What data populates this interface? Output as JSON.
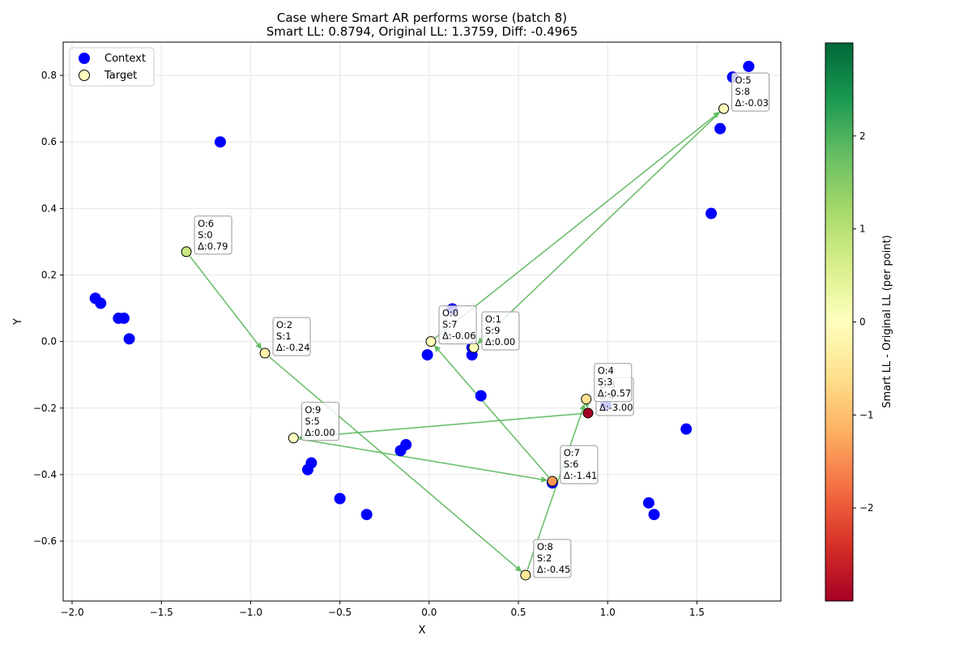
{
  "chart_data": {
    "type": "scatter",
    "title": "Case where Smart AR performs worse (batch 8)",
    "subtitle": "Smart LL: 0.8794, Original LL: 1.3759, Diff: -0.4965",
    "xlabel": "X",
    "ylabel": "Y",
    "xlim": [
      -2.05,
      1.97
    ],
    "ylim": [
      -0.78,
      0.9
    ],
    "x_ticks": [
      "−2.0",
      "−1.5",
      "−1.0",
      "−0.5",
      "0.0",
      "0.5",
      "1.0",
      "1.5"
    ],
    "x_tick_values": [
      -2.0,
      -1.5,
      -1.0,
      -0.5,
      0.0,
      0.5,
      1.0,
      1.5
    ],
    "y_ticks": [
      "−0.6",
      "−0.4",
      "−0.2",
      "0.0",
      "0.2",
      "0.4",
      "0.6",
      "0.8"
    ],
    "y_tick_values": [
      -0.6,
      -0.4,
      -0.2,
      0.0,
      0.2,
      0.4,
      0.6,
      0.8
    ],
    "grid": true,
    "legend_position": "top-left",
    "legend": [
      {
        "label": "Context",
        "marker": "blue-filled-circle"
      },
      {
        "label": "Target",
        "marker": "pale-yellow-circle-black-edge"
      }
    ],
    "context_points": [
      {
        "x": -1.87,
        "y": 0.13
      },
      {
        "x": -1.84,
        "y": 0.115
      },
      {
        "x": -1.74,
        "y": 0.07
      },
      {
        "x": -1.71,
        "y": 0.07
      },
      {
        "x": -1.68,
        "y": 0.008
      },
      {
        "x": -1.17,
        "y": 0.6
      },
      {
        "x": -0.66,
        "y": -0.365
      },
      {
        "x": -0.68,
        "y": -0.385
      },
      {
        "x": -0.5,
        "y": -0.472
      },
      {
        "x": -0.35,
        "y": -0.52
      },
      {
        "x": -0.13,
        "y": -0.31
      },
      {
        "x": -0.16,
        "y": -0.328
      },
      {
        "x": 0.13,
        "y": 0.098
      },
      {
        "x": -0.01,
        "y": -0.04
      },
      {
        "x": 0.24,
        "y": -0.018
      },
      {
        "x": 0.24,
        "y": -0.04
      },
      {
        "x": 0.29,
        "y": -0.163
      },
      {
        "x": 0.69,
        "y": -0.425
      },
      {
        "x": 0.99,
        "y": -0.19
      },
      {
        "x": 1.23,
        "y": -0.485
      },
      {
        "x": 1.26,
        "y": -0.52
      },
      {
        "x": 1.44,
        "y": -0.263
      },
      {
        "x": 1.58,
        "y": 0.385
      },
      {
        "x": 1.63,
        "y": 0.64
      },
      {
        "x": 1.7,
        "y": 0.795
      },
      {
        "x": 1.79,
        "y": 0.827
      }
    ],
    "target_points": [
      {
        "o": 0,
        "s": 7,
        "delta": -0.06,
        "x": 0.01,
        "y": 0.0,
        "label": "O:0\nS:7\nΔ:-0.06"
      },
      {
        "o": 1,
        "s": 9,
        "delta": 0.0,
        "x": 0.25,
        "y": -0.018,
        "label": "O:1\nS:9\nΔ:0.00"
      },
      {
        "o": 2,
        "s": 1,
        "delta": -0.24,
        "x": -0.92,
        "y": -0.035,
        "label": "O:2\nS:1\nΔ:-0.24"
      },
      {
        "o": 3,
        "s": 4,
        "delta": -3.0,
        "x": 0.89,
        "y": -0.215,
        "label": "O:3\nS:4\nΔ:-3.00"
      },
      {
        "o": 4,
        "s": 3,
        "delta": -0.57,
        "x": 0.88,
        "y": -0.173,
        "label": "O:4\nS:3\nΔ:-0.57"
      },
      {
        "o": 5,
        "s": 8,
        "delta": -0.03,
        "x": 1.65,
        "y": 0.7,
        "label": "O:5\nS:8\nΔ:-0.03"
      },
      {
        "o": 6,
        "s": 0,
        "delta": 0.79,
        "x": -1.36,
        "y": 0.27,
        "label": "O:6\nS:0\nΔ:0.79"
      },
      {
        "o": 7,
        "s": 6,
        "delta": -1.41,
        "x": 0.69,
        "y": -0.42,
        "label": "O:7\nS:6\nΔ:-1.41"
      },
      {
        "o": 8,
        "s": 2,
        "delta": -0.45,
        "x": 0.54,
        "y": -0.702,
        "label": "O:8\nS:2\nΔ:-0.45"
      },
      {
        "o": 9,
        "s": 5,
        "delta": 0.0,
        "x": -0.76,
        "y": -0.29,
        "label": "O:9\nS:5\nΔ:0.00"
      }
    ],
    "colorbar": {
      "label": "Smart LL - Original LL (per point)",
      "colormap": "RdYlGn",
      "range": [
        -3.0,
        3.0
      ],
      "ticks": [
        "−2",
        "−1",
        "0",
        "1",
        "2"
      ],
      "tick_values": [
        -2,
        -1,
        0,
        1,
        2
      ]
    },
    "colors": {
      "context": "#0000ff",
      "arrow": "#5cb85c",
      "grid": "#e6e6e6"
    }
  }
}
